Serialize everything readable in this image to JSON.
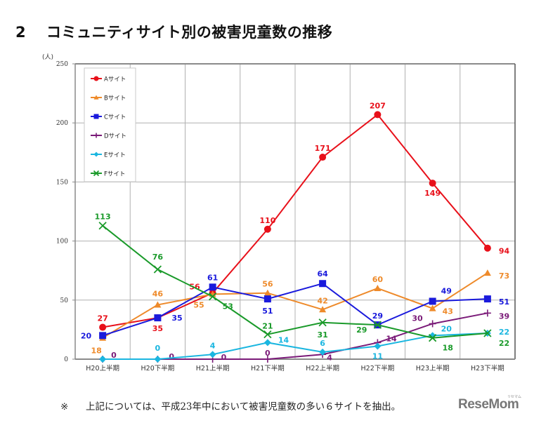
{
  "header": {
    "number": "2",
    "title": "コミュニティサイト別の被害児童数の推移"
  },
  "chart_data": {
    "type": "line",
    "title": "コミュニティサイト別の被害児童数の推移",
    "ylabel": "(人)",
    "xlabel": "",
    "ylim": [
      0,
      250
    ],
    "yticks": [
      0,
      50,
      100,
      150,
      200,
      250
    ],
    "grid": true,
    "legend_position": "top-left",
    "categories": [
      "H20上半期",
      "H20下半期",
      "H21上半期",
      "H21下半期",
      "H22上半期",
      "H22下半期",
      "H23上半期",
      "H23下半期"
    ],
    "series": [
      {
        "name": "Aサイト",
        "color": "#e8101a",
        "marker": "circle",
        "values": [
          27,
          35,
          56,
          110,
          171,
          207,
          149,
          94
        ]
      },
      {
        "name": "Bサイト",
        "color": "#ee8a2a",
        "marker": "triangle",
        "values": [
          18,
          46,
          55,
          56,
          42,
          60,
          43,
          73
        ]
      },
      {
        "name": "Cサイト",
        "color": "#1a1adc",
        "marker": "square",
        "values": [
          20,
          35,
          61,
          51,
          64,
          29,
          49,
          51
        ]
      },
      {
        "name": "Dサイト",
        "color": "#7a1a78",
        "marker": "plus",
        "values": [
          0,
          0,
          0,
          0,
          4,
          14,
          30,
          39
        ]
      },
      {
        "name": "Eサイト",
        "color": "#1ab6e0",
        "marker": "diamond",
        "values": [
          0,
          0,
          4,
          14,
          6,
          11,
          20,
          22
        ]
      },
      {
        "name": "Fサイト",
        "color": "#1a9a2a",
        "marker": "x",
        "values": [
          113,
          76,
          53,
          21,
          31,
          29,
          18,
          22
        ]
      }
    ]
  },
  "footer": {
    "mark": "※",
    "note": "上記については、平成23年中において被害児童数の多い６サイトを抽出。",
    "logo": "ReseMom",
    "logo_sub": "リセマム"
  }
}
